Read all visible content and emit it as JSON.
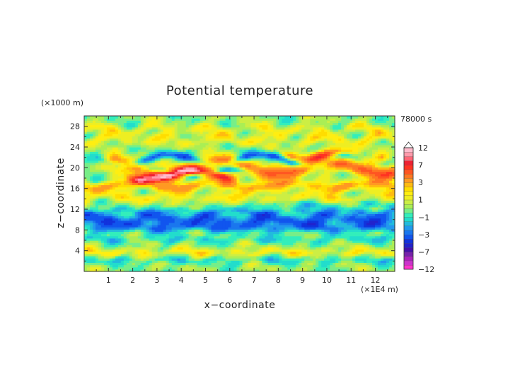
{
  "chart_data": {
    "type": "heatmap",
    "title": "Potential temperature",
    "xlabel": "x−coordinate",
    "ylabel": "z−coordinate",
    "x_unit": "(×1E4 m)",
    "y_unit": "(×1000 m)",
    "time_label": "78000 s",
    "xlim": [
      0,
      12.8
    ],
    "ylim": [
      0,
      30
    ],
    "x_ticks": [
      1,
      2,
      3,
      4,
      5,
      6,
      7,
      8,
      9,
      10,
      11,
      12
    ],
    "y_ticks": [
      4,
      8,
      12,
      16,
      20,
      24,
      28
    ],
    "grid": false,
    "colorbar": {
      "placement": "right",
      "levels": [
        -12,
        -10,
        -9,
        -8,
        -7,
        -6,
        -5,
        -4,
        -3,
        -2.5,
        -2,
        -1.5,
        -1,
        -0.5,
        0,
        0.5,
        1,
        1.5,
        2,
        2.5,
        3,
        4,
        5,
        6,
        7,
        8,
        9,
        10,
        12
      ],
      "colors": [
        "#ff33cc",
        "#cc33cc",
        "#aa22bb",
        "#7722aa",
        "#4411aa",
        "#2222cc",
        "#1133dd",
        "#1155ee",
        "#1a77ee",
        "#2299ee",
        "#22bbdd",
        "#22ddcc",
        "#33eebb",
        "#77ee88",
        "#aaee55",
        "#ccee44",
        "#eeee22",
        "#ffee11",
        "#ffdd00",
        "#ffbb11",
        "#ff9922",
        "#ff7722",
        "#ff5522",
        "#ff3322",
        "#ee2233",
        "#ff6677",
        "#ff99aa",
        "#ffbbcc"
      ],
      "tick_labels": [
        "12",
        "7",
        "3",
        "1",
        "−1",
        "−3",
        "−7",
        "−12"
      ],
      "tick_values": [
        12,
        7,
        3,
        1,
        -1,
        -3,
        -7,
        -12
      ],
      "extend": "both"
    },
    "features": [
      {
        "kind": "band",
        "z": 20,
        "z_amp": 1.2,
        "thick": 1.3,
        "value": 5,
        "x_from": 1.2,
        "x_to": 12.8
      },
      {
        "kind": "band",
        "z": 18.6,
        "z_amp": 0.8,
        "thick": 0.9,
        "value": 6.5,
        "x_from": 2.2,
        "x_to": 5.8
      },
      {
        "kind": "band",
        "z": 21.6,
        "z_amp": 1.0,
        "thick": 0.8,
        "value": -3,
        "x_from": 1.0,
        "x_to": 12.0
      },
      {
        "kind": "band",
        "z": 19.2,
        "z_amp": 0.6,
        "thick": 0.6,
        "value": -3.5,
        "x_from": 2.8,
        "x_to": 6.5
      },
      {
        "kind": "band",
        "z": 16.6,
        "z_amp": 0.6,
        "thick": 1.0,
        "value": 3,
        "x_from": 0,
        "x_to": 12.8
      },
      {
        "kind": "band",
        "z": 22.5,
        "z_amp": 0.8,
        "thick": 0.9,
        "value": 4,
        "x_from": 8.5,
        "x_to": 12.2
      },
      {
        "kind": "band",
        "z": 14.3,
        "z_amp": 0.5,
        "thick": 0.9,
        "value": 1.5,
        "x_from": 0,
        "x_to": 12.8
      },
      {
        "kind": "band",
        "z": 13,
        "z_amp": 0.4,
        "thick": 0.7,
        "value": -1,
        "x_from": 7,
        "x_to": 12.8
      },
      {
        "kind": "band",
        "z": 10,
        "z_amp": 0.3,
        "thick": 1.3,
        "value": -3,
        "x_from": 0,
        "x_to": 12.8
      },
      {
        "kind": "band",
        "z": 8.5,
        "z_amp": 0.4,
        "thick": 0.9,
        "value": -2,
        "x_from": 0,
        "x_to": 12.8
      },
      {
        "kind": "band",
        "z": 11.6,
        "z_amp": 0.5,
        "thick": 0.7,
        "value": -1.5,
        "x_from": 0,
        "x_to": 12.8
      },
      {
        "kind": "band",
        "z": 25.5,
        "z_amp": 0.8,
        "thick": 0.9,
        "value": 1.5,
        "x_from": 0,
        "x_to": 12.8
      },
      {
        "kind": "band",
        "z": 27.5,
        "z_amp": 0.7,
        "thick": 0.8,
        "value": 1.2,
        "x_from": 0,
        "x_to": 12.8
      },
      {
        "kind": "band",
        "z": 6.3,
        "z_amp": 0.4,
        "thick": 0.7,
        "value": -1,
        "x_from": 0,
        "x_to": 12.8
      },
      {
        "kind": "band",
        "z": 3.8,
        "z_amp": 0.4,
        "thick": 0.7,
        "value": 1.5,
        "x_from": 0,
        "x_to": 12.8
      },
      {
        "kind": "band",
        "z": 2.2,
        "z_amp": 0.4,
        "thick": 0.6,
        "value": -1,
        "x_from": 0,
        "x_to": 12.8
      }
    ]
  }
}
